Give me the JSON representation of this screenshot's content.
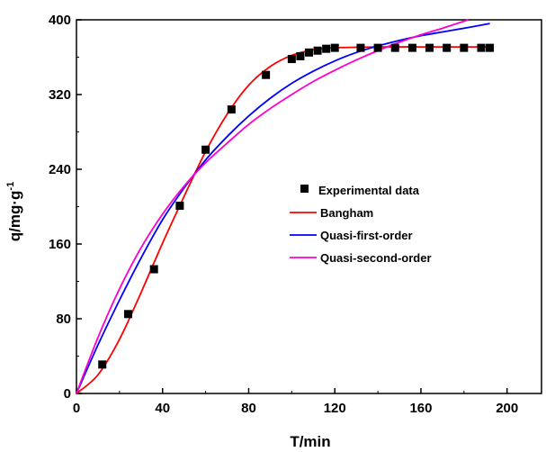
{
  "chart_data": {
    "type": "scatter",
    "xlabel": "T/min",
    "ylabel": "q/mg·g-1",
    "ylabel_parts": {
      "main": "q/mg·g",
      "sup": "-1"
    },
    "xlim": [
      0,
      216
    ],
    "ylim": [
      0,
      400
    ],
    "xticks": [
      0,
      40,
      80,
      120,
      160,
      200
    ],
    "yticks": [
      0,
      80,
      160,
      240,
      320,
      400
    ],
    "legend_position": "center-right",
    "series": [
      {
        "name": "Experimental data",
        "kind": "points",
        "marker": "square",
        "color": "#000000",
        "points": [
          [
            12,
            31
          ],
          [
            24,
            85
          ],
          [
            36,
            133
          ],
          [
            48,
            201
          ],
          [
            60,
            261
          ],
          [
            72,
            304
          ],
          [
            88,
            341
          ],
          [
            100,
            358
          ],
          [
            104,
            361
          ],
          [
            108,
            365
          ],
          [
            112,
            367
          ],
          [
            116,
            369
          ],
          [
            120,
            370
          ],
          [
            132,
            370
          ],
          [
            140,
            370
          ],
          [
            148,
            370
          ],
          [
            156,
            370
          ],
          [
            164,
            370
          ],
          [
            172,
            370
          ],
          [
            180,
            370
          ],
          [
            188,
            370
          ],
          [
            192,
            370
          ]
        ]
      },
      {
        "name": "Bangham",
        "kind": "line",
        "color": "#ff0000",
        "points": [
          [
            0,
            0
          ],
          [
            10,
            20
          ],
          [
            20,
            58
          ],
          [
            30,
            108
          ],
          [
            40,
            161
          ],
          [
            50,
            211
          ],
          [
            60,
            259
          ],
          [
            70,
            299
          ],
          [
            80,
            330
          ],
          [
            90,
            350
          ],
          [
            100,
            362
          ],
          [
            110,
            368
          ],
          [
            120,
            370
          ],
          [
            140,
            371
          ],
          [
            160,
            371
          ],
          [
            192,
            371
          ]
        ]
      },
      {
        "name": "Quasi-first-order",
        "kind": "line",
        "color": "#0000ff",
        "points": [
          [
            0,
            0
          ],
          [
            10,
            52
          ],
          [
            20,
            100
          ],
          [
            30,
            145
          ],
          [
            40,
            186
          ],
          [
            50,
            220
          ],
          [
            60,
            250
          ],
          [
            70,
            275
          ],
          [
            80,
            297
          ],
          [
            90,
            316
          ],
          [
            100,
            332
          ],
          [
            110,
            345
          ],
          [
            120,
            356
          ],
          [
            130,
            365
          ],
          [
            140,
            372
          ],
          [
            150,
            378
          ],
          [
            160,
            383
          ],
          [
            170,
            387
          ],
          [
            180,
            391
          ],
          [
            192,
            396
          ]
        ]
      },
      {
        "name": "Quasi-second-order",
        "kind": "line",
        "color": "#ff00cc",
        "points": [
          [
            0,
            0
          ],
          [
            10,
            60
          ],
          [
            20,
            112
          ],
          [
            30,
            156
          ],
          [
            40,
            192
          ],
          [
            50,
            222
          ],
          [
            60,
            247
          ],
          [
            70,
            268
          ],
          [
            80,
            288
          ],
          [
            90,
            305
          ],
          [
            100,
            320
          ],
          [
            110,
            334
          ],
          [
            120,
            346
          ],
          [
            130,
            357
          ],
          [
            140,
            367
          ],
          [
            150,
            376
          ],
          [
            160,
            384
          ],
          [
            170,
            391
          ],
          [
            182,
            400
          ]
        ]
      }
    ]
  }
}
